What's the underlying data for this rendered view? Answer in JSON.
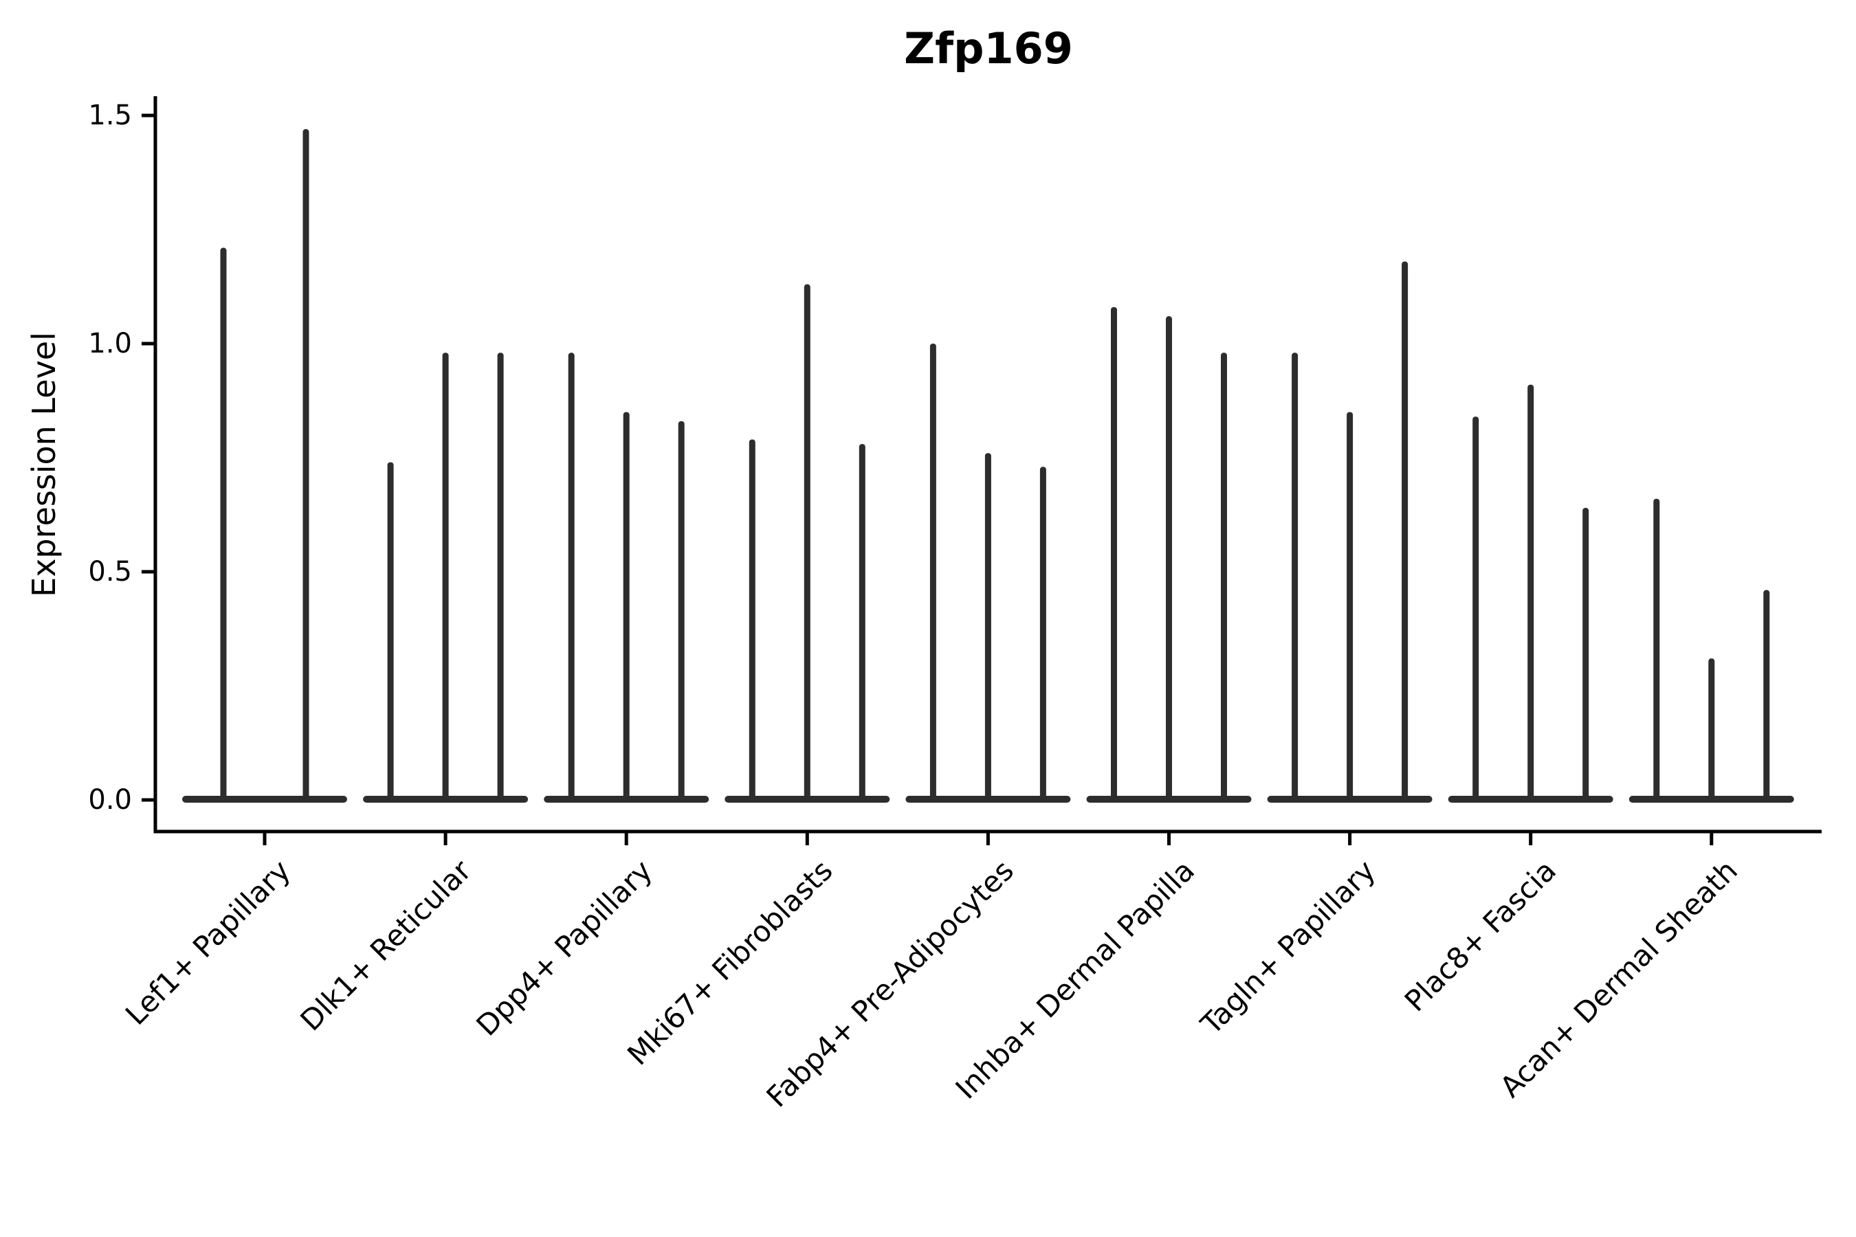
{
  "figure": {
    "title": "Zfp169",
    "ylabel": "Expression Level",
    "background_color": "#ffffff",
    "axis_color": "#000000",
    "violin_color": "#2d2d2d"
  },
  "chart_data": {
    "type": "violin",
    "title": "Zfp169",
    "xlabel": "",
    "ylabel": "Expression Level",
    "ylim": [
      -0.07,
      1.54
    ],
    "yticks": [
      0.0,
      0.5,
      1.0,
      1.5
    ],
    "ytick_labels": [
      "0.0",
      "0.5",
      "1.0",
      "1.5"
    ],
    "grid": false,
    "legend": "none",
    "xtick_rotation_deg": 45,
    "violin_shape_note": "needle violins: wide flat base at 0 with thin spike up to max expression",
    "categories": [
      "Lef1+ Papillary",
      "Dlk1+ Reticular",
      "Dpp4+ Papillary",
      "Mki67+ Fibroblasts",
      "Fabp4+ Pre-Adipocytes",
      "Inhba+ Dermal Papilla",
      "Tagln+ Papillary",
      "Plac8+ Fascia",
      "Acan+ Dermal Sheath"
    ],
    "groups": [
      {
        "category": "Lef1+ Papillary",
        "violin_max_values": [
          1.21,
          1.47
        ]
      },
      {
        "category": "Dlk1+ Reticular",
        "violin_max_values": [
          0.74,
          0.98,
          0.98
        ]
      },
      {
        "category": "Dpp4+ Papillary",
        "violin_max_values": [
          0.98,
          0.85,
          0.83
        ]
      },
      {
        "category": "Mki67+ Fibroblasts",
        "violin_max_values": [
          0.79,
          1.13,
          0.78
        ]
      },
      {
        "category": "Fabp4+ Pre-Adipocytes",
        "violin_max_values": [
          1.0,
          0.76,
          0.73
        ]
      },
      {
        "category": "Inhba+ Dermal Papilla",
        "violin_max_values": [
          1.08,
          1.06,
          0.98
        ]
      },
      {
        "category": "Tagln+ Papillary",
        "violin_max_values": [
          0.98,
          0.85,
          1.18
        ]
      },
      {
        "category": "Plac8+ Fascia",
        "violin_max_values": [
          0.84,
          0.91,
          0.64
        ]
      },
      {
        "category": "Acan+ Dermal Sheath",
        "violin_max_values": [
          0.66,
          0.31,
          0.46
        ]
      }
    ],
    "baseline_value": 0.0,
    "violin_color": "#2d2d2d",
    "axis_color": "#000000"
  }
}
